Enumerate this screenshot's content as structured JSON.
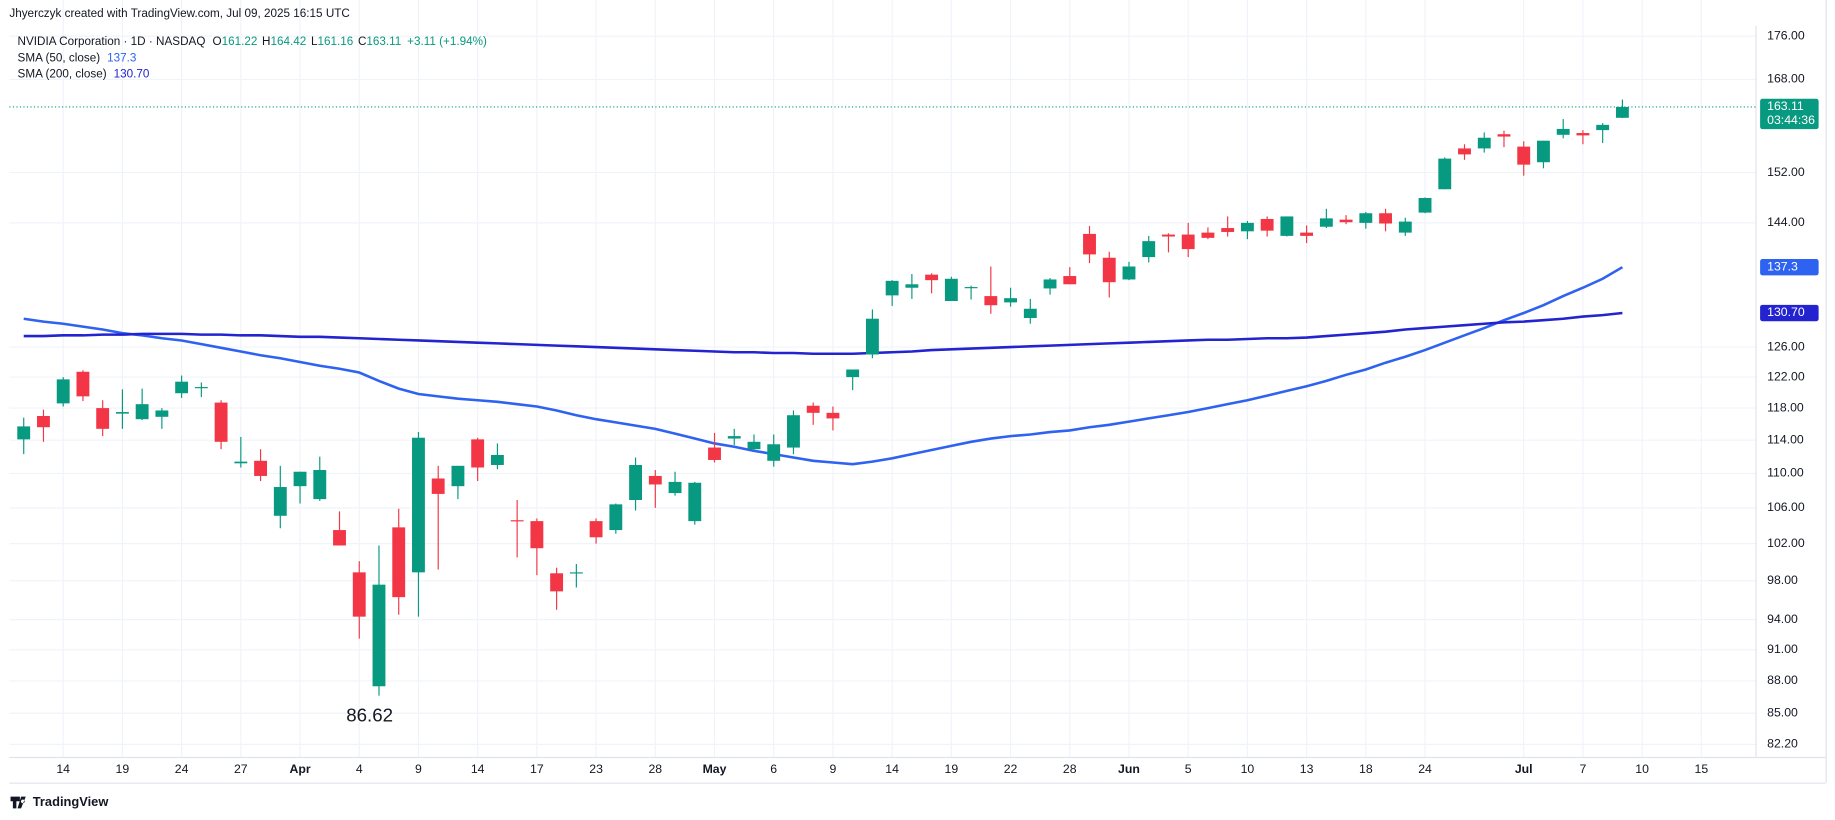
{
  "chart_data": {
    "type": "candlestick",
    "title": "Jhyerczyk created with TradingView.com, Jul 09, 2025 16:15 UTC",
    "footer": "TradingView",
    "legend": {
      "symbol": "NVIDIA Corporation · 1D · NASDAQ",
      "o": "O",
      "h": "H",
      "l": "L",
      "c": "C",
      "change": "+3.11 (+1.94%)"
    },
    "countdown": "03:44:36",
    "log_scale": true,
    "grid": true,
    "up_color": "#089981",
    "down_color": "#f23645",
    "categories": [
      null,
      null,
      "14",
      null,
      null,
      "19",
      null,
      null,
      "24",
      null,
      null,
      "27",
      null,
      null,
      "Apr",
      null,
      null,
      "4",
      null,
      null,
      "9",
      null,
      null,
      "14",
      null,
      null,
      "17",
      null,
      null,
      "23",
      null,
      null,
      "28",
      null,
      null,
      "May",
      null,
      null,
      "6",
      null,
      null,
      "9",
      null,
      null,
      "14",
      null,
      null,
      "19",
      null,
      null,
      "22",
      null,
      null,
      "28",
      null,
      null,
      "Jun",
      null,
      null,
      "5",
      null,
      null,
      "10",
      null,
      null,
      "13",
      null,
      null,
      "18",
      null,
      null,
      "24",
      null,
      null,
      null,
      null,
      "Jul",
      null,
      null,
      "7",
      null,
      null,
      "10",
      null,
      null,
      "15",
      null,
      null
    ],
    "open": [
      114.1,
      117.0,
      118.6,
      122.7,
      118.0,
      117.3,
      116.6,
      116.9,
      119.9,
      120.6,
      118.7,
      111.2,
      111.5,
      105.1,
      108.5,
      107.0,
      103.5,
      98.9,
      87.5,
      103.8,
      98.9,
      109.4,
      108.5,
      114.1,
      111.0,
      104.6,
      104.5,
      98.8,
      98.8,
      104.5,
      103.5,
      106.9,
      109.7,
      107.7,
      104.5,
      113.1,
      114.2,
      112.9,
      111.5,
      113.1,
      118.3,
      117.4,
      122.0,
      125.0,
      133.2,
      134.3,
      136.2,
      132.4,
      134.3,
      133.1,
      132.2,
      130.0,
      134.2,
      136.0,
      142.3,
      138.7,
      135.5,
      138.8,
      142.2,
      142.2,
      142.5,
      143.2,
      142.7,
      144.6,
      142.0,
      142.5,
      143.4,
      144.5,
      144.0,
      145.5,
      142.5,
      145.6,
      149.3,
      156.0,
      156.0,
      158.4,
      156.3,
      153.7,
      158.3,
      158.6,
      159.1,
      161.22,
      null,
      null,
      null,
      null,
      null,
      null
    ],
    "high": [
      116.8,
      117.8,
      122.0,
      122.9,
      119.0,
      120.4,
      120.5,
      118.0,
      122.2,
      121.3,
      119.0,
      114.4,
      112.9,
      110.9,
      110.2,
      112.0,
      105.6,
      100.1,
      101.8,
      105.9,
      115.0,
      110.9,
      110.9,
      114.3,
      113.6,
      106.9,
      104.8,
      99.4,
      99.8,
      104.8,
      106.5,
      111.9,
      110.4,
      110.2,
      109.0,
      114.9,
      115.4,
      114.7,
      114.7,
      117.7,
      118.7,
      118.2,
      123.0,
      131.2,
      135.4,
      136.3,
      136.4,
      135.9,
      134.6,
      137.4,
      134.3,
      132.7,
      135.7,
      137.3,
      143.5,
      139.6,
      138.1,
      142.0,
      142.4,
      144.0,
      143.3,
      145.0,
      144.3,
      145.0,
      145.0,
      143.6,
      146.2,
      145.2,
      145.7,
      146.2,
      144.8,
      148.0,
      154.5,
      156.7,
      158.7,
      159.0,
      157.2,
      157.3,
      161.0,
      159.1,
      160.3,
      164.42,
      null,
      null,
      null,
      null,
      null,
      null
    ],
    "low": [
      112.3,
      113.8,
      118.2,
      118.9,
      114.5,
      115.4,
      116.5,
      115.4,
      119.3,
      119.4,
      112.9,
      110.7,
      109.1,
      103.7,
      106.5,
      106.8,
      101.8,
      92.1,
      86.62,
      94.5,
      94.3,
      99.2,
      107.0,
      109.1,
      110.5,
      100.5,
      98.6,
      95.0,
      97.3,
      102.0,
      103.1,
      105.7,
      106.0,
      107.4,
      104.1,
      111.3,
      113.4,
      112.7,
      110.8,
      112.3,
      115.9,
      115.2,
      120.3,
      124.5,
      131.7,
      132.7,
      133.5,
      132.4,
      132.6,
      130.6,
      131.6,
      129.2,
      133.3,
      134.8,
      137.9,
      132.9,
      135.4,
      138.0,
      139.5,
      138.8,
      141.5,
      141.9,
      141.5,
      141.9,
      141.9,
      140.9,
      143.2,
      143.8,
      143.1,
      142.7,
      142.0,
      145.5,
      149.3,
      154.1,
      155.3,
      156.2,
      151.5,
      152.7,
      157.7,
      156.7,
      156.9,
      161.16,
      null,
      null,
      null,
      null,
      null,
      null
    ],
    "close": [
      115.7,
      115.6,
      121.7,
      119.5,
      115.4,
      117.5,
      118.5,
      117.7,
      121.4,
      120.7,
      113.8,
      111.4,
      109.7,
      108.4,
      110.2,
      110.4,
      101.8,
      94.3,
      97.6,
      96.3,
      114.3,
      107.6,
      110.9,
      110.7,
      112.2,
      104.5,
      101.5,
      96.9,
      98.9,
      102.7,
      106.4,
      111.0,
      108.7,
      109.0,
      108.9,
      111.6,
      114.5,
      113.8,
      113.5,
      117.1,
      117.4,
      116.7,
      123.0,
      129.9,
      135.3,
      134.8,
      135.4,
      135.6,
      134.4,
      131.8,
      132.8,
      131.3,
      135.5,
      134.8,
      139.2,
      135.1,
      137.4,
      141.2,
      141.9,
      140.0,
      141.7,
      142.6,
      144.0,
      142.8,
      145.0,
      142.0,
      144.7,
      144.1,
      145.5,
      143.9,
      144.2,
      147.9,
      154.3,
      155.0,
      157.8,
      158.0,
      153.3,
      157.3,
      159.3,
      158.2,
      160.0,
      163.11,
      null,
      null,
      null,
      null,
      null,
      null
    ],
    "series": [
      {
        "name": "SMA (50, close)",
        "color": "#2e62f0",
        "values": [
          129.9,
          129.5,
          129.2,
          128.8,
          128.4,
          127.9,
          127.6,
          127.2,
          126.9,
          126.4,
          125.9,
          125.4,
          124.9,
          124.5,
          124.0,
          123.5,
          123.1,
          122.6,
          121.5,
          120.5,
          119.8,
          119.5,
          119.2,
          119.0,
          118.8,
          118.5,
          118.2,
          117.7,
          117.1,
          116.6,
          116.2,
          115.8,
          115.4,
          114.8,
          114.2,
          113.6,
          113.2,
          112.7,
          112.3,
          111.9,
          111.5,
          111.3,
          111.1,
          111.4,
          111.8,
          112.3,
          112.8,
          113.3,
          113.8,
          114.2,
          114.5,
          114.7,
          115.0,
          115.2,
          115.6,
          115.9,
          116.3,
          116.7,
          117.1,
          117.5,
          118.0,
          118.5,
          119.0,
          119.6,
          120.2,
          120.8,
          121.5,
          122.3,
          123.0,
          123.9,
          124.7,
          125.6,
          126.6,
          127.6,
          128.6,
          129.7,
          130.7,
          131.8,
          133.1,
          134.3,
          135.6,
          137.3,
          null,
          null,
          null,
          null,
          null,
          null
        ]
      },
      {
        "name": "SMA (200, close)",
        "color": "#2323d0",
        "last_label": "130.70",
        "values": [
          127.5,
          127.5,
          127.6,
          127.6,
          127.7,
          127.7,
          127.8,
          127.8,
          127.8,
          127.7,
          127.7,
          127.6,
          127.6,
          127.5,
          127.4,
          127.4,
          127.3,
          127.2,
          127.1,
          127.0,
          126.9,
          126.8,
          126.7,
          126.6,
          126.5,
          126.4,
          126.3,
          126.2,
          126.1,
          126.0,
          125.9,
          125.8,
          125.7,
          125.6,
          125.5,
          125.4,
          125.3,
          125.3,
          125.2,
          125.2,
          125.1,
          125.1,
          125.1,
          125.2,
          125.3,
          125.4,
          125.6,
          125.7,
          125.8,
          125.9,
          126.0,
          126.1,
          126.2,
          126.3,
          126.4,
          126.5,
          126.6,
          126.7,
          126.8,
          126.9,
          127.0,
          127.0,
          127.1,
          127.2,
          127.2,
          127.3,
          127.5,
          127.7,
          127.9,
          128.1,
          128.4,
          128.6,
          128.8,
          129.0,
          129.2,
          129.4,
          129.5,
          129.7,
          129.9,
          130.2,
          130.4,
          130.7,
          null,
          null,
          null,
          null,
          null,
          null
        ]
      }
    ],
    "ylim": [
      81.1,
      178
    ],
    "yticks": [
      {
        "value": 176,
        "label": "176.00"
      },
      {
        "value": 168,
        "label": "168.00"
      },
      {
        "value": 152,
        "label": "152.00"
      },
      {
        "value": 144,
        "label": "144.00"
      },
      {
        "value": 126,
        "label": "126.00"
      },
      {
        "value": 122,
        "label": "122.00"
      },
      {
        "value": 118,
        "label": "118.00"
      },
      {
        "value": 114,
        "label": "114.00"
      },
      {
        "value": 110,
        "label": "110.00"
      },
      {
        "value": 106,
        "label": "106.00"
      },
      {
        "value": 102,
        "label": "102.00"
      },
      {
        "value": 98,
        "label": "98.00"
      },
      {
        "value": 94,
        "label": "94.00"
      },
      {
        "value": 91,
        "label": "91.00"
      },
      {
        "value": 88,
        "label": "88.00"
      },
      {
        "value": 85,
        "label": "85.00"
      },
      {
        "value": 82.2,
        "label": "82.20"
      }
    ]
  }
}
